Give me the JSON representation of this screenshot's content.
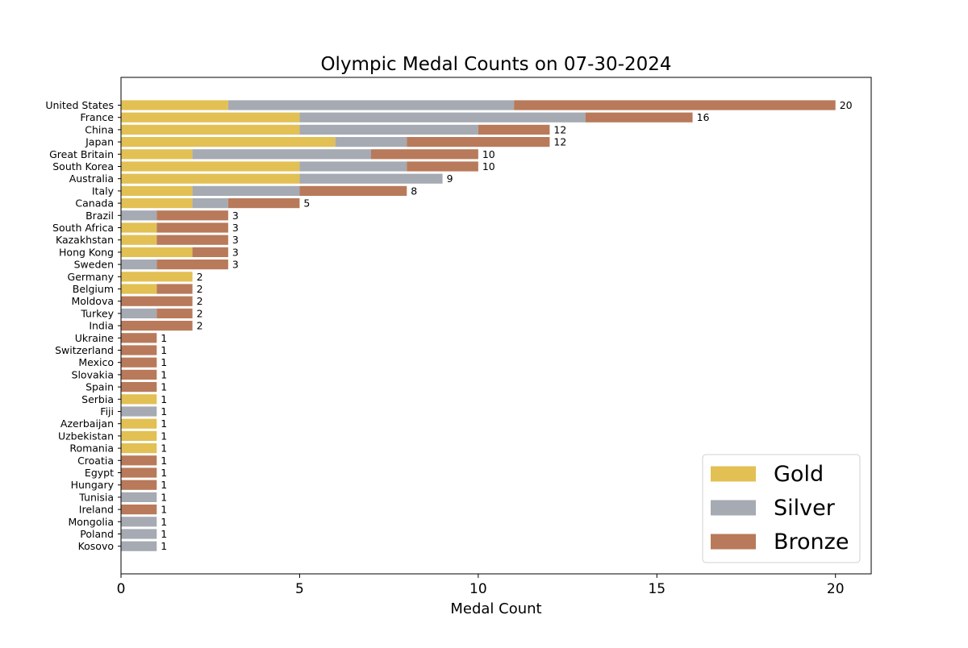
{
  "chart_data": {
    "type": "bar",
    "orientation": "horizontal",
    "stacked": true,
    "title": "Olympic Medal Counts on 07-30-2024",
    "xlabel": "Medal Count",
    "ylabel": "",
    "xlim": [
      0,
      21
    ],
    "xticks": [
      0,
      5,
      10,
      15,
      20
    ],
    "grid": false,
    "legend_position": "bottom-right",
    "categories": [
      "United States",
      "France",
      "China",
      "Japan",
      "Great Britain",
      "South Korea",
      "Australia",
      "Italy",
      "Canada",
      "Brazil",
      "South Africa",
      "Kazakhstan",
      "Hong Kong",
      "Sweden",
      "Germany",
      "Belgium",
      "Moldova",
      "Turkey",
      "India",
      "Ukraine",
      "Switzerland",
      "Mexico",
      "Slovakia",
      "Spain",
      "Serbia",
      "Fiji",
      "Azerbaijan",
      "Uzbekistan",
      "Romania",
      "Croatia",
      "Egypt",
      "Hungary",
      "Tunisia",
      "Ireland",
      "Mongolia",
      "Poland",
      "Kosovo"
    ],
    "series": [
      {
        "name": "Gold",
        "color": "#e2c054",
        "values": [
          3,
          5,
          5,
          6,
          2,
          5,
          5,
          2,
          2,
          0,
          1,
          1,
          2,
          0,
          2,
          1,
          0,
          0,
          0,
          0,
          0,
          0,
          0,
          0,
          1,
          0,
          1,
          1,
          1,
          0,
          0,
          0,
          0,
          0,
          0,
          0,
          0
        ]
      },
      {
        "name": "Silver",
        "color": "#a6aab2",
        "values": [
          8,
          8,
          5,
          2,
          5,
          3,
          4,
          3,
          1,
          1,
          0,
          0,
          0,
          1,
          0,
          0,
          0,
          1,
          0,
          0,
          0,
          0,
          0,
          0,
          0,
          1,
          0,
          0,
          0,
          0,
          0,
          0,
          1,
          0,
          1,
          1,
          1
        ]
      },
      {
        "name": "Bronze",
        "color": "#b87a5a",
        "values": [
          9,
          3,
          2,
          4,
          3,
          2,
          0,
          3,
          2,
          2,
          2,
          2,
          1,
          2,
          0,
          1,
          2,
          1,
          2,
          1,
          1,
          1,
          1,
          1,
          0,
          0,
          0,
          0,
          0,
          1,
          1,
          1,
          0,
          1,
          0,
          0,
          0
        ]
      }
    ],
    "totals": [
      20,
      16,
      12,
      12,
      10,
      10,
      9,
      8,
      5,
      3,
      3,
      3,
      3,
      3,
      2,
      2,
      2,
      2,
      2,
      1,
      1,
      1,
      1,
      1,
      1,
      1,
      1,
      1,
      1,
      1,
      1,
      1,
      1,
      1,
      1,
      1,
      1
    ]
  }
}
